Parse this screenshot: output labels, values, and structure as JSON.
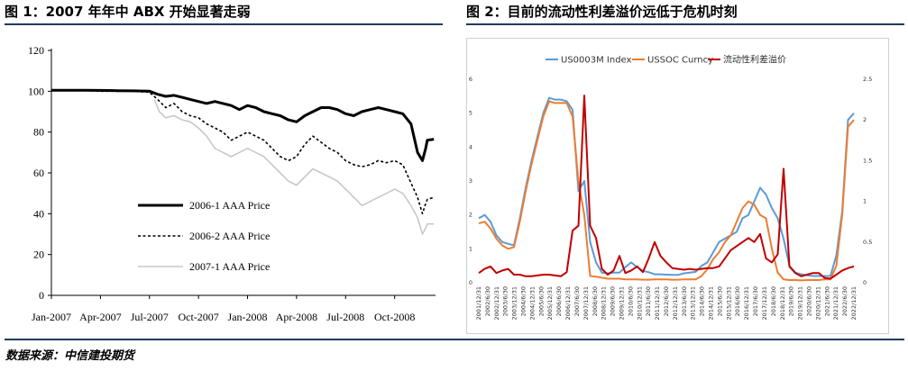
{
  "figures": {
    "fig1_title": "图 1：2007 年年中 ABX 开始显著走弱",
    "fig2_title": "图 2：目前的流动性利差溢价远低于危机时刻"
  },
  "source": "数据来源：中信建投期货",
  "colors": {
    "rule": "#1f3a5f",
    "s2006_1": "#000000",
    "s2006_2": "#000000",
    "s2007_1": "#c8c8c8",
    "us0003m": "#5b9bd5",
    "ussoc": "#ed7d31",
    "spread": "#c00000"
  },
  "chart_data": [
    {
      "type": "line",
      "ylim": [
        0,
        120
      ],
      "yticks": [
        "0",
        "20",
        "40",
        "60",
        "80",
        "100",
        "120"
      ],
      "xticks": [
        "Jan-2007",
        "Apr-2007",
        "Jul-2007",
        "Oct-2007",
        "Jan-2008",
        "Apr-2008",
        "Jul-2008",
        "Oct-2008"
      ],
      "x_months": [
        0,
        3,
        6,
        9,
        12,
        15,
        18,
        21
      ],
      "series": [
        {
          "name": "2006-1 AAA  Price",
          "style": "solid-thick",
          "points": [
            [
              0,
              100.5
            ],
            [
              1,
              100.5
            ],
            [
              2,
              100.5
            ],
            [
              3,
              100.4
            ],
            [
              4,
              100.3
            ],
            [
              5,
              100.2
            ],
            [
              6,
              100
            ],
            [
              6.5,
              98.5
            ],
            [
              7,
              97.5
            ],
            [
              7.5,
              98
            ],
            [
              8,
              97
            ],
            [
              8.5,
              96
            ],
            [
              9,
              95
            ],
            [
              9.5,
              94
            ],
            [
              10,
              95
            ],
            [
              10.5,
              94
            ],
            [
              11,
              93
            ],
            [
              11.5,
              91
            ],
            [
              12,
              93
            ],
            [
              12.5,
              92
            ],
            [
              13,
              90
            ],
            [
              13.5,
              89
            ],
            [
              14,
              88
            ],
            [
              14.5,
              86
            ],
            [
              15,
              85
            ],
            [
              15.5,
              88
            ],
            [
              16,
              90
            ],
            [
              16.5,
              92
            ],
            [
              17,
              92
            ],
            [
              17.5,
              91
            ],
            [
              18,
              89
            ],
            [
              18.5,
              88
            ],
            [
              19,
              90
            ],
            [
              19.5,
              91
            ],
            [
              20,
              92
            ],
            [
              20.5,
              91
            ],
            [
              21,
              90
            ],
            [
              21.5,
              89
            ],
            [
              22,
              84
            ],
            [
              22.4,
              70
            ],
            [
              22.7,
              66
            ],
            [
              22.9,
              72
            ],
            [
              23,
              76
            ],
            [
              23.4,
              76.5
            ]
          ]
        },
        {
          "name": "2006-2 AAA  Price",
          "style": "dashed",
          "points": [
            [
              0,
              100.5
            ],
            [
              1,
              100.5
            ],
            [
              2,
              100.4
            ],
            [
              3,
              100
            ],
            [
              4,
              100
            ],
            [
              5,
              100
            ],
            [
              6,
              99.5
            ],
            [
              6.5,
              96
            ],
            [
              7,
              92
            ],
            [
              7.5,
              94
            ],
            [
              8,
              90
            ],
            [
              8.5,
              88
            ],
            [
              9,
              87
            ],
            [
              9.5,
              84
            ],
            [
              10,
              82
            ],
            [
              10.5,
              80
            ],
            [
              11,
              76
            ],
            [
              11.5,
              78
            ],
            [
              12,
              80
            ],
            [
              12.5,
              78
            ],
            [
              13,
              76
            ],
            [
              13.5,
              72
            ],
            [
              14,
              68
            ],
            [
              14.5,
              66
            ],
            [
              15,
              68
            ],
            [
              15.5,
              74
            ],
            [
              16,
              78
            ],
            [
              16.5,
              75
            ],
            [
              17,
              72
            ],
            [
              17.5,
              70
            ],
            [
              18,
              66
            ],
            [
              18.5,
              64
            ],
            [
              19,
              63
            ],
            [
              19.5,
              64
            ],
            [
              20,
              66
            ],
            [
              20.5,
              65
            ],
            [
              21,
              66
            ],
            [
              21.5,
              64
            ],
            [
              22,
              55
            ],
            [
              22.4,
              48
            ],
            [
              22.7,
              40
            ],
            [
              22.9,
              45
            ],
            [
              23,
              47
            ],
            [
              23.4,
              48
            ]
          ]
        },
        {
          "name": "2007-1 AAA  Price",
          "style": "solid-light",
          "points": [
            [
              6.3,
              96
            ],
            [
              6.6,
              90
            ],
            [
              7,
              87
            ],
            [
              7.5,
              88
            ],
            [
              8,
              86
            ],
            [
              8.5,
              85
            ],
            [
              9,
              82
            ],
            [
              9.5,
              78
            ],
            [
              10,
              72
            ],
            [
              10.5,
              70
            ],
            [
              11,
              68
            ],
            [
              11.5,
              70
            ],
            [
              12,
              72
            ],
            [
              12.5,
              70
            ],
            [
              13,
              68
            ],
            [
              13.5,
              64
            ],
            [
              14,
              60
            ],
            [
              14.5,
              56
            ],
            [
              15,
              54
            ],
            [
              15.5,
              58
            ],
            [
              16,
              62
            ],
            [
              16.5,
              60
            ],
            [
              17,
              58
            ],
            [
              17.5,
              56
            ],
            [
              18,
              52
            ],
            [
              18.5,
              48
            ],
            [
              19,
              44
            ],
            [
              19.5,
              46
            ],
            [
              20,
              48
            ],
            [
              20.5,
              50
            ],
            [
              21,
              52
            ],
            [
              21.5,
              50
            ],
            [
              22,
              44
            ],
            [
              22.4,
              38
            ],
            [
              22.7,
              30
            ],
            [
              22.9,
              33
            ],
            [
              23,
              35
            ],
            [
              23.4,
              35
            ]
          ]
        }
      ]
    },
    {
      "type": "line",
      "y_left_lim": [
        0,
        6
      ],
      "y_left_ticks": [
        "0",
        "1",
        "2",
        "3",
        "4",
        "5",
        "6"
      ],
      "y_right_lim": [
        0,
        2.5
      ],
      "y_right_ticks": [
        "0",
        "0.5",
        "1",
        "1.5",
        "2",
        "2.5"
      ],
      "xticks": [
        "2001/12/31",
        "2002/6/30",
        "2002/12/31",
        "2003/6/30",
        "2003/12/31",
        "2004/6/30",
        "2004/12/31",
        "2005/6/30",
        "2005/12/31",
        "2006/6/30",
        "2006/12/31",
        "2007/6/30",
        "2007/12/31",
        "2008/6/30",
        "2008/12/31",
        "2009/6/30",
        "2009/12/31",
        "2010/6/30",
        "2010/12/31",
        "2011/6/30",
        "2011/12/31",
        "2012/6/30",
        "2012/12/31",
        "2013/6/30",
        "2013/12/31",
        "2014/6/30",
        "2014/12/31",
        "2015/6/30",
        "2015/12/31",
        "2016/6/30",
        "2016/12/31",
        "2017/6/30",
        "2017/12/31",
        "2018/6/30",
        "2018/12/31",
        "2019/6/30",
        "2019/12/31",
        "2020/6/30",
        "2020/12/31",
        "2021/6/30",
        "2021/12/31",
        "2022/6/30",
        "2022/12/31"
      ],
      "series": [
        {
          "name": "US0003M Index",
          "axis": "left",
          "values": [
            1.9,
            2.0,
            1.8,
            1.4,
            1.2,
            1.15,
            1.1,
            1.9,
            2.8,
            3.6,
            4.3,
            5.0,
            5.45,
            5.4,
            5.4,
            5.35,
            5.1,
            2.7,
            3.0,
            1.2,
            0.6,
            0.3,
            0.28,
            0.3,
            0.3,
            0.46,
            0.6,
            0.46,
            0.35,
            0.31,
            0.25,
            0.25,
            0.24,
            0.23,
            0.23,
            0.28,
            0.3,
            0.32,
            0.5,
            0.6,
            0.9,
            1.2,
            1.3,
            1.4,
            1.5,
            1.9,
            2.0,
            2.4,
            2.8,
            2.6,
            2.2,
            1.9,
            1.3,
            0.5,
            0.3,
            0.25,
            0.22,
            0.2,
            0.2,
            0.2,
            0.2,
            0.8,
            2.1,
            4.8,
            5.0
          ]
        },
        {
          "name": "USSOC Curncy",
          "axis": "left",
          "values": [
            1.75,
            1.8,
            1.6,
            1.3,
            1.1,
            1.0,
            1.05,
            1.8,
            2.7,
            3.5,
            4.2,
            4.9,
            5.35,
            5.3,
            5.3,
            5.3,
            4.9,
            3.0,
            2.0,
            0.2,
            0.18,
            0.15,
            0.12,
            0.12,
            0.12,
            0.1,
            0.1,
            0.1,
            0.09,
            0.09,
            0.1,
            0.1,
            0.1,
            0.09,
            0.09,
            0.1,
            0.1,
            0.1,
            0.2,
            0.4,
            0.7,
            0.9,
            1.2,
            1.4,
            1.8,
            2.2,
            2.4,
            2.3,
            2.0,
            1.9,
            1.0,
            0.3,
            0.1,
            0.08,
            0.08,
            0.07,
            0.08,
            0.08,
            0.08,
            0.1,
            0.1,
            0.5,
            2.0,
            4.6,
            4.8
          ]
        },
        {
          "name": "流动性利差溢价",
          "axis": "right",
          "values": [
            0.12,
            0.17,
            0.2,
            0.12,
            0.15,
            0.17,
            0.1,
            0.1,
            0.08,
            0.08,
            0.09,
            0.1,
            0.1,
            0.09,
            0.08,
            0.13,
            0.64,
            0.7,
            2.3,
            0.7,
            0.55,
            0.17,
            0.1,
            0.15,
            0.33,
            0.12,
            0.15,
            0.2,
            0.13,
            0.3,
            0.5,
            0.33,
            0.25,
            0.18,
            0.17,
            0.16,
            0.17,
            0.16,
            0.17,
            0.18,
            0.18,
            0.2,
            0.3,
            0.4,
            0.45,
            0.5,
            0.55,
            0.5,
            0.6,
            0.3,
            0.25,
            0.35,
            1.4,
            0.2,
            0.12,
            0.08,
            0.1,
            0.12,
            0.12,
            0.06,
            0.05,
            0.1,
            0.15,
            0.18,
            0.2
          ]
        }
      ]
    }
  ]
}
